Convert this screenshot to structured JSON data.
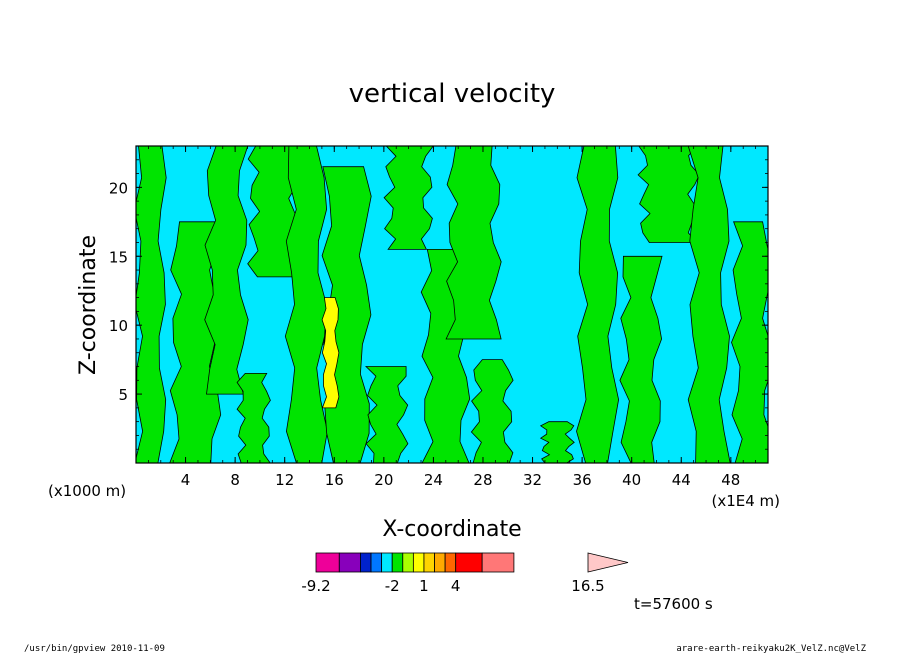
{
  "chart_data": {
    "type": "heatmap",
    "title": "vertical velocity",
    "xlabel": "X-coordinate",
    "ylabel": "Z-coordinate",
    "x_unit_left": "(x1000 m)",
    "x_unit_right": "(x1E4 m)",
    "xlim": [
      0,
      51
    ],
    "ylim": [
      0,
      23
    ],
    "x_ticks": [
      4,
      8,
      12,
      16,
      20,
      24,
      28,
      32,
      36,
      40,
      44,
      48
    ],
    "x_tick_labels": [
      "4",
      "8",
      "12",
      "16",
      "20",
      "24",
      "28",
      "32",
      "36",
      "40",
      "44",
      "48"
    ],
    "y_ticks": [
      5,
      10,
      15,
      20
    ],
    "y_tick_labels": [
      "5",
      "10",
      "15",
      "20"
    ],
    "background_level_color": "#00e8ff",
    "updraft_bands": [
      {
        "x0": 0.2,
        "x1": 2.1,
        "z0": 0,
        "z1": 23,
        "color": "#00e400"
      },
      {
        "x0": 3.2,
        "x1": 6.4,
        "z0": 0,
        "z1": 17.5,
        "color": "#00e400"
      },
      {
        "x0": 6.0,
        "x1": 8.6,
        "z0": 5.0,
        "z1": 23,
        "color": "#00e400"
      },
      {
        "x0": 8.5,
        "x1": 10.5,
        "z0": 0,
        "z1": 6.5,
        "color": "#00e400"
      },
      {
        "x0": 9.5,
        "x1": 12.8,
        "z0": 13.5,
        "z1": 23,
        "color": "#00e400"
      },
      {
        "x0": 12.5,
        "x1": 15.0,
        "z0": 0,
        "z1": 23,
        "color": "#00e400"
      },
      {
        "x0": 15.5,
        "x1": 18.5,
        "z0": 0,
        "z1": 21.5,
        "color": "#00e400"
      },
      {
        "x0": 19.0,
        "x1": 21.5,
        "z0": 0,
        "z1": 7.0,
        "color": "#00e400"
      },
      {
        "x0": 20.5,
        "x1": 23.5,
        "z0": 15.5,
        "z1": 23,
        "color": "#00e400"
      },
      {
        "x0": 23.5,
        "x1": 26.5,
        "z0": 0,
        "z1": 15.5,
        "color": "#00e400"
      },
      {
        "x0": 25.5,
        "x1": 29.0,
        "z0": 9.0,
        "z1": 23,
        "color": "#00e400"
      },
      {
        "x0": 27.5,
        "x1": 30.0,
        "z0": 0,
        "z1": 7.5,
        "color": "#00e400"
      },
      {
        "x0": 33.0,
        "x1": 35.0,
        "z0": 0,
        "z1": 3.0,
        "color": "#00e400"
      },
      {
        "x0": 36.0,
        "x1": 38.5,
        "z0": 0,
        "z1": 23,
        "color": "#00e400"
      },
      {
        "x0": 39.5,
        "x1": 42.0,
        "z0": 0,
        "z1": 15.0,
        "color": "#00e400"
      },
      {
        "x0": 41.0,
        "x1": 45.0,
        "z0": 16.0,
        "z1": 23,
        "color": "#00e400"
      },
      {
        "x0": 45.0,
        "x1": 47.5,
        "z0": 0,
        "z1": 23,
        "color": "#00e400"
      },
      {
        "x0": 48.5,
        "x1": 51.0,
        "z0": 0,
        "z1": 17.5,
        "color": "#00e400"
      },
      {
        "x0": 15.2,
        "x1": 16.2,
        "z0": 4.0,
        "z1": 12.0,
        "color": "#ffff00"
      }
    ],
    "colorbar": {
      "colors": [
        "#ee0099",
        "#8800bb",
        "#0022cc",
        "#0077ff",
        "#00e8ff",
        "#00e400",
        "#aaff00",
        "#ffff00",
        "#ffd400",
        "#ffaa00",
        "#ff6600",
        "#ff0000",
        "#ff7777"
      ],
      "extend_color": "#ffc8c8",
      "labels": [
        "-9.2",
        "-2",
        "1",
        "4",
        "16.5"
      ],
      "label_values": [
        -9.2,
        -2,
        1,
        4,
        16.5
      ]
    },
    "time_label": "t=57600 s"
  },
  "footer": {
    "left": "/usr/bin/gpview  2010-11-09",
    "right": "arare-earth-reikyaku2K_VelZ.nc@VelZ"
  }
}
